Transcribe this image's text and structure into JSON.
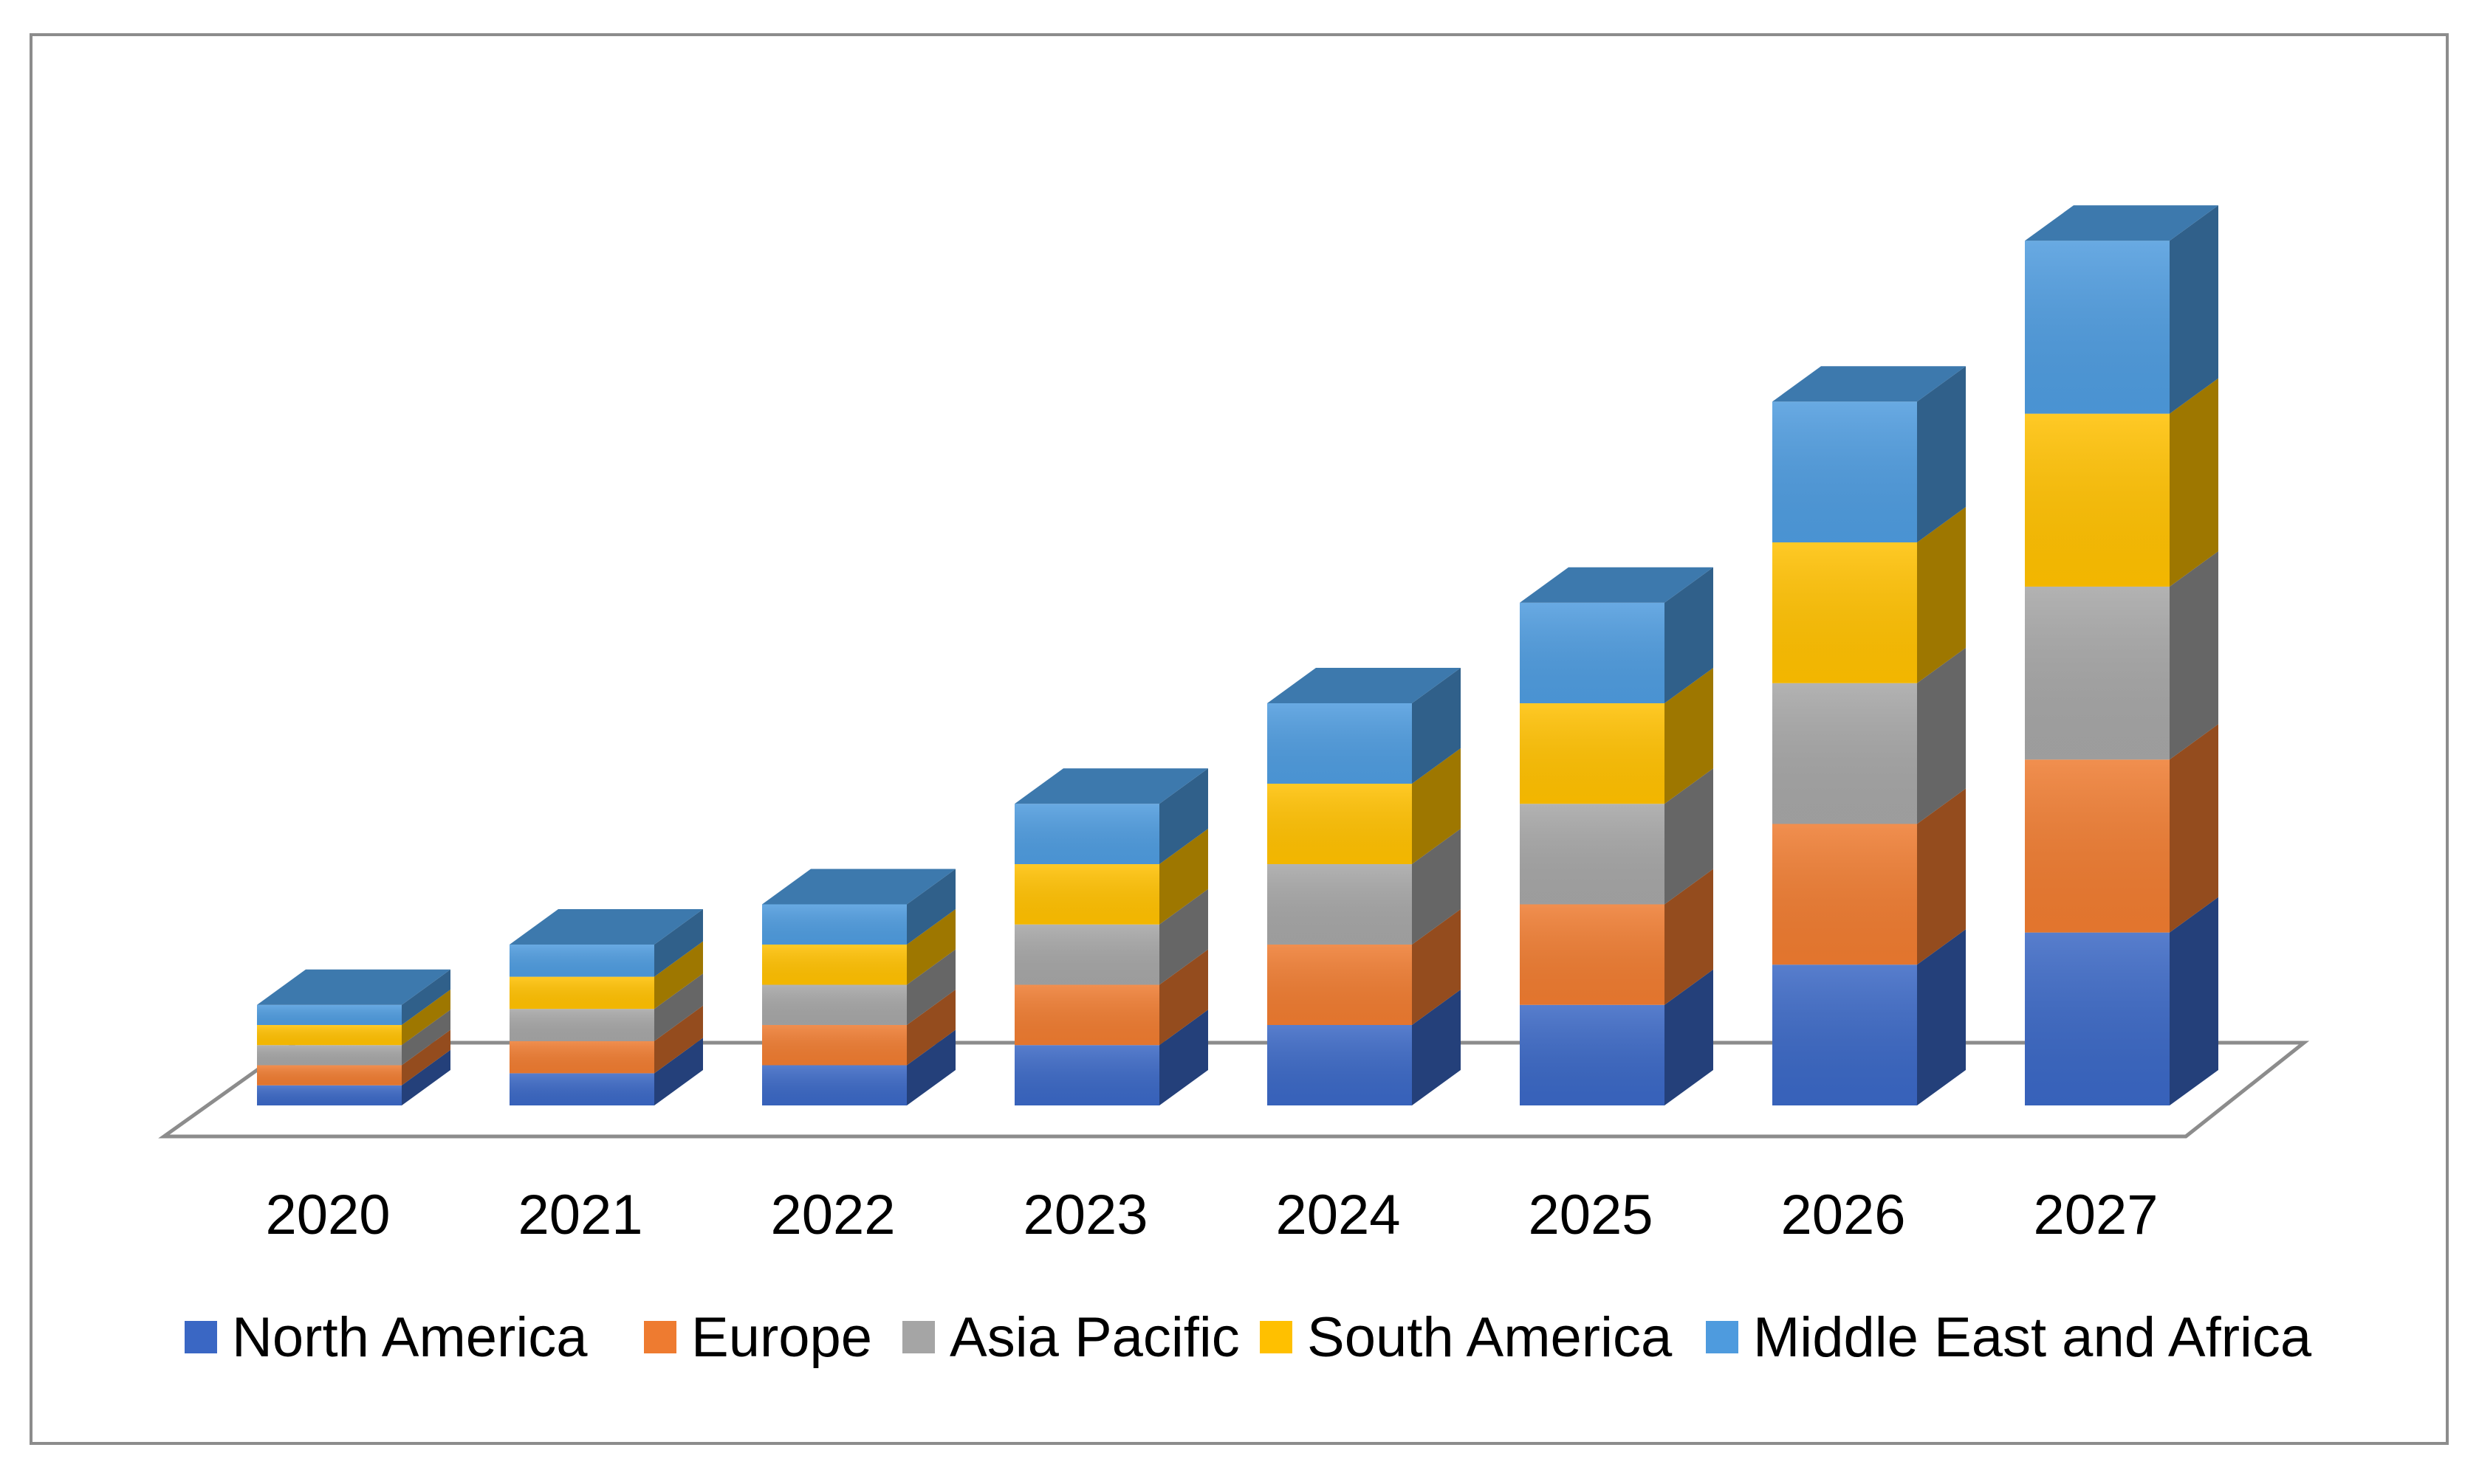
{
  "chart_data": {
    "type": "bar",
    "stacked": true,
    "three_d": true,
    "title": "",
    "xlabel": "",
    "ylabel": "",
    "categories": [
      "2020",
      "2021",
      "2022",
      "2023",
      "2024",
      "2025",
      "2026",
      "2027"
    ],
    "series": [
      {
        "name": "North America",
        "color": "#3A67C4",
        "values": [
          0.5,
          0.8,
          1.0,
          1.5,
          2.0,
          2.5,
          3.5,
          4.3
        ]
      },
      {
        "name": "Europe",
        "color": "#EE7B30",
        "values": [
          0.5,
          0.8,
          1.0,
          1.5,
          2.0,
          2.5,
          3.5,
          4.3
        ]
      },
      {
        "name": "Asia Pacific",
        "color": "#A5A5A5",
        "values": [
          0.5,
          0.8,
          1.0,
          1.5,
          2.0,
          2.5,
          3.5,
          4.3
        ]
      },
      {
        "name": "South America",
        "color": "#FFC000",
        "values": [
          0.5,
          0.8,
          1.0,
          1.5,
          2.0,
          2.5,
          3.5,
          4.3
        ]
      },
      {
        "name": "Middle East and Africa",
        "color": "#4E9BDE",
        "values": [
          0.5,
          0.8,
          1.0,
          1.5,
          2.0,
          2.5,
          3.5,
          4.3
        ]
      }
    ],
    "grid": false,
    "legend_position": "bottom"
  }
}
